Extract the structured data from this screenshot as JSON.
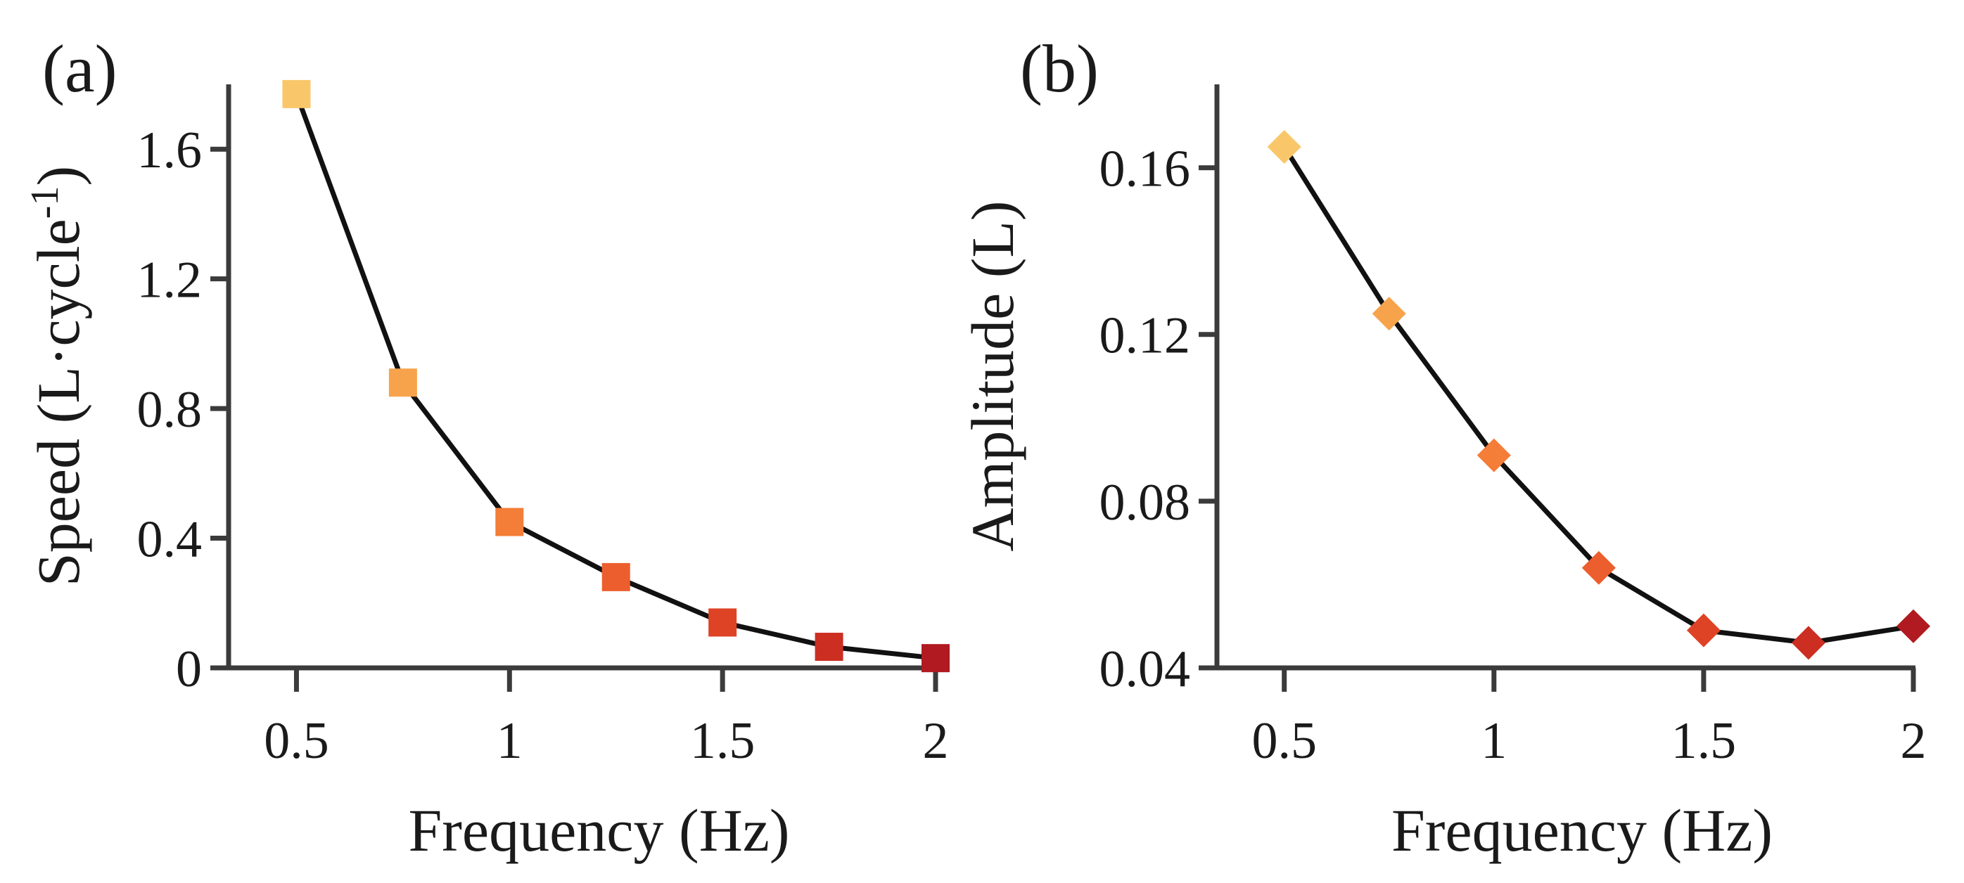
{
  "chart_data": [
    {
      "panel_label": "(a)",
      "type": "line",
      "marker": "square",
      "x": [
        0.5,
        0.75,
        1,
        1.25,
        1.5,
        1.75,
        2
      ],
      "y": [
        1.77,
        0.88,
        0.45,
        0.28,
        0.14,
        0.065,
        0.03
      ],
      "marker_colors": [
        "#f9c76a",
        "#f7a34c",
        "#f47d38",
        "#ec5e2d",
        "#de4326",
        "#cc2e22",
        "#b01a20"
      ],
      "line_color": "#111111",
      "xlabel": "Frequency (Hz)",
      "ylabel": {
        "base": "Speed (L·cycle",
        "superscript": "-1",
        "close": ")"
      },
      "xticks": [
        0.5,
        1,
        1.5,
        2
      ],
      "xtick_labels": [
        "0.5",
        "1",
        "1.5",
        "2"
      ],
      "yticks": [
        0,
        0.4,
        0.8,
        1.2,
        1.6
      ],
      "ytick_labels": [
        "0",
        "0.4",
        "0.8",
        "1.2",
        "1.6"
      ],
      "xlim": [
        0.42,
        2
      ],
      "ylim": [
        0,
        1.8
      ],
      "grid": false
    },
    {
      "panel_label": "(b)",
      "type": "line",
      "marker": "diamond",
      "x": [
        0.5,
        0.75,
        1,
        1.25,
        1.5,
        1.75,
        2
      ],
      "y": [
        0.165,
        0.125,
        0.091,
        0.064,
        0.049,
        0.046,
        0.05
      ],
      "marker_colors": [
        "#f9c76a",
        "#f7a34c",
        "#f47d38",
        "#ec5e2d",
        "#de4326",
        "#cc2e22",
        "#b01a20"
      ],
      "line_color": "#111111",
      "xlabel": "Frequency (Hz)",
      "ylabel": {
        "base": "Amplitude (L)",
        "superscript": "",
        "close": ""
      },
      "xticks": [
        0.5,
        1,
        1.5,
        2
      ],
      "xtick_labels": [
        "0.5",
        "1",
        "1.5",
        "2"
      ],
      "yticks": [
        0.04,
        0.08,
        0.12,
        0.16
      ],
      "ytick_labels": [
        "0.04",
        "0.08",
        "0.12",
        "0.16"
      ],
      "xlim": [
        0.42,
        2
      ],
      "ylim": [
        0.04,
        0.18
      ],
      "grid": false
    }
  ]
}
